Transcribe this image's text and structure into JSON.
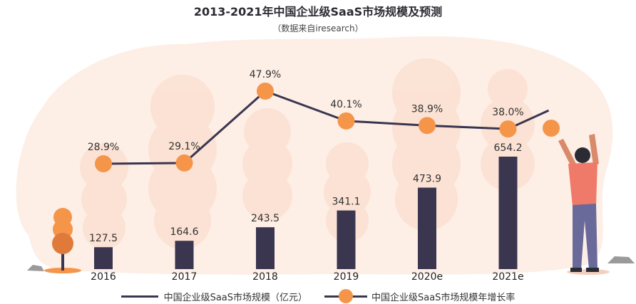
{
  "title": "2013-2021年中国企业级SaaS市场规模及预测",
  "subtitle": "（数据来自iresearch）",
  "colors": {
    "bar": "#3a3650",
    "line": "#3a3650",
    "marker": "#f5954a",
    "background_blob": "#fdeee6",
    "figure_skin": "#d88a6a",
    "figure_shirt": "#f07a6a",
    "figure_pants": "#6a6a9a"
  },
  "legend": {
    "bar_series": "中国企业级SaaS市场规模（亿元）",
    "line_series": "中国企业级SaaS市场规模年增长率"
  },
  "chart_data": {
    "type": "bar",
    "categories": [
      "2016",
      "2017",
      "2018",
      "2019",
      "2020e",
      "2021e"
    ],
    "series": [
      {
        "name": "中国企业级SaaS市场规模（亿元）",
        "type": "bar",
        "values": [
          127.5,
          164.6,
          243.5,
          341.1,
          473.9,
          654.2
        ],
        "labels": [
          "127.5",
          "164.6",
          "243.5",
          "341.1",
          "473.9",
          "654.2"
        ]
      },
      {
        "name": "中国企业级SaaS市场规模年增长率",
        "type": "line",
        "values": [
          28.9,
          29.1,
          47.9,
          40.1,
          38.9,
          38.0
        ],
        "labels": [
          "28.9%",
          "29.1%",
          "47.9%",
          "40.1%",
          "38.9%",
          "38.0%"
        ]
      }
    ],
    "legend_position": "bottom",
    "grid": false
  }
}
